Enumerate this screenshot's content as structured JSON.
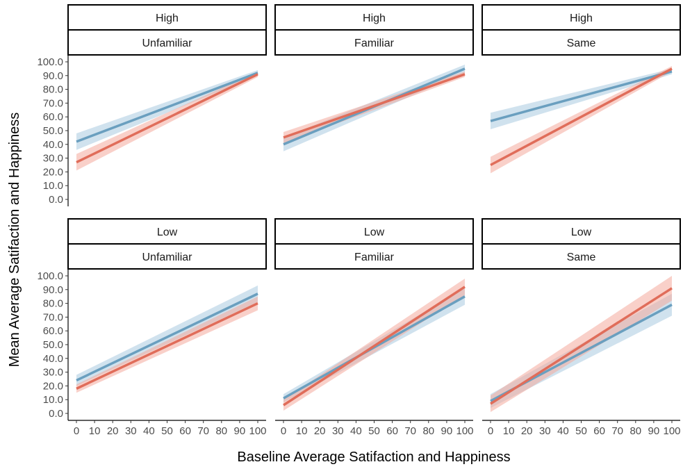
{
  "chart_data": {
    "type": "line",
    "xlabel": "Baseline Average Satifaction and Happiness",
    "ylabel": "Mean Average Satifaction and Happiness",
    "xlim": [
      0,
      100
    ],
    "ylim": [
      0,
      100
    ],
    "x_ticks": [
      "0",
      "10",
      "20",
      "30",
      "40",
      "50",
      "60",
      "70",
      "80",
      "90",
      "100"
    ],
    "y_ticks": [
      "0.0",
      "10.0",
      "20.0",
      "30.0",
      "40.0",
      "50.0",
      "60.0",
      "70.0",
      "80.0",
      "90.0",
      "100.0"
    ],
    "grid": false,
    "legend": "none",
    "series_colors": {
      "blue": "#6a9fbf",
      "red": "#e06d5a"
    },
    "band_colors": {
      "blue": "#a9cbe0",
      "red": "#f4a99c"
    },
    "panels": [
      {
        "strip": [
          "High",
          "Unfamiliar"
        ],
        "series": [
          {
            "color": "blue",
            "x": [
              0,
              100
            ],
            "y": [
              42,
              92
            ],
            "lower": [
              36,
              90
            ],
            "upper": [
              48,
              94
            ]
          },
          {
            "color": "red",
            "x": [
              0,
              100
            ],
            "y": [
              27,
              91
            ],
            "lower": [
              21,
              89
            ],
            "upper": [
              33,
              93
            ]
          }
        ]
      },
      {
        "strip": [
          "High",
          "Familiar"
        ],
        "series": [
          {
            "color": "blue",
            "x": [
              0,
              100
            ],
            "y": [
              40,
              95
            ],
            "lower": [
              35,
              92
            ],
            "upper": [
              45,
              98
            ]
          },
          {
            "color": "red",
            "x": [
              0,
              100
            ],
            "y": [
              45,
              91
            ],
            "lower": [
              41,
              89
            ],
            "upper": [
              49,
              93
            ]
          }
        ]
      },
      {
        "strip": [
          "High",
          "Same"
        ],
        "series": [
          {
            "color": "blue",
            "x": [
              0,
              100
            ],
            "y": [
              57,
              93
            ],
            "lower": [
              51,
              91
            ],
            "upper": [
              63,
              95
            ]
          },
          {
            "color": "red",
            "x": [
              0,
              100
            ],
            "y": [
              25,
              95
            ],
            "lower": [
              19,
              93
            ],
            "upper": [
              31,
              97
            ]
          }
        ]
      },
      {
        "strip": [
          "Low",
          "Unfamiliar"
        ],
        "series": [
          {
            "color": "blue",
            "x": [
              0,
              100
            ],
            "y": [
              24,
              87
            ],
            "lower": [
              20,
              81
            ],
            "upper": [
              28,
              93
            ]
          },
          {
            "color": "red",
            "x": [
              0,
              100
            ],
            "y": [
              18,
              80
            ],
            "lower": [
              15,
              75
            ],
            "upper": [
              21,
              85
            ]
          }
        ]
      },
      {
        "strip": [
          "Low",
          "Familiar"
        ],
        "series": [
          {
            "color": "blue",
            "x": [
              0,
              100
            ],
            "y": [
              11,
              85
            ],
            "lower": [
              8,
              79
            ],
            "upper": [
              14,
              91
            ]
          },
          {
            "color": "red",
            "x": [
              0,
              100
            ],
            "y": [
              6,
              92
            ],
            "lower": [
              2,
              86
            ],
            "upper": [
              10,
              98
            ]
          }
        ]
      },
      {
        "strip": [
          "Low",
          "Same"
        ],
        "series": [
          {
            "color": "blue",
            "x": [
              0,
              100
            ],
            "y": [
              9,
              79
            ],
            "lower": [
              4,
              71
            ],
            "upper": [
              14,
              87
            ]
          },
          {
            "color": "red",
            "x": [
              0,
              100
            ],
            "y": [
              7,
              91
            ],
            "lower": [
              1,
              82
            ],
            "upper": [
              13,
              100
            ]
          }
        ]
      }
    ]
  }
}
